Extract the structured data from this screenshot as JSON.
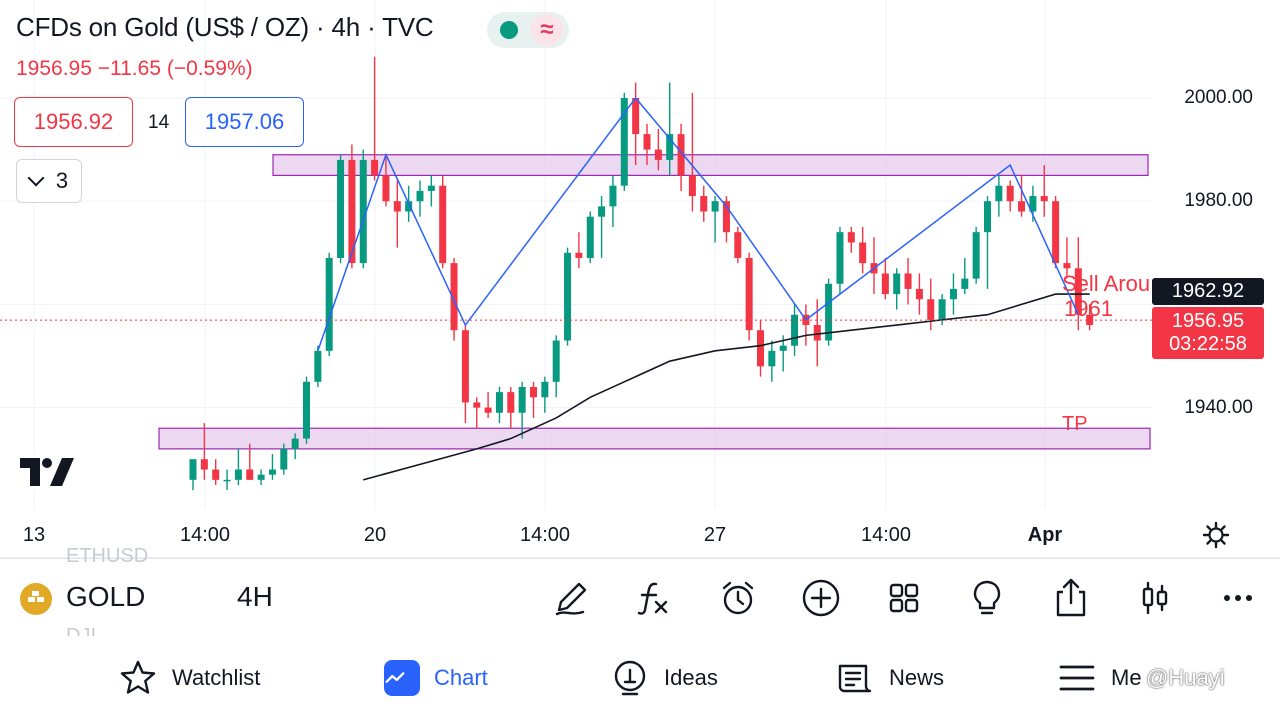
{
  "header": {
    "title": "CFDs on Gold (US$ / OZ) · 4h · TVC",
    "change": "1956.95  −11.65 (−0.59%)",
    "bid": "1956.92",
    "spread": "14",
    "ask": "1957.06",
    "indicator_count": "3",
    "status_color": "#089981",
    "wave_glyph": "≈"
  },
  "chart": {
    "y_ticks": [
      "2000.00",
      "1980.00",
      "1940.00"
    ],
    "x_ticks": [
      "13",
      "14:00",
      "20",
      "14:00",
      "27",
      "14:00",
      "Apr"
    ],
    "ma_price": "1962.92",
    "last_price": "1956.95",
    "countdown": "03:22:58",
    "annotation_sell": "Sell Arou",
    "annotation_sell_price": "1961",
    "annotation_tp": "TP",
    "colors": {
      "up": "#089981",
      "down": "#f23645",
      "zone": "#e1bee7",
      "zone_border": "#9c27b0",
      "zigzag": "#2962ff",
      "ma": "#131722"
    }
  },
  "chart_data": {
    "type": "candlestick",
    "y_range": [
      1926,
      2010
    ],
    "zones": [
      {
        "low": 1985,
        "high": 1989
      },
      {
        "low": 1932,
        "high": 1936
      }
    ],
    "candles": [
      {
        "o": 1926,
        "h": 1930,
        "l": 1924,
        "c": 1930
      },
      {
        "o": 1930,
        "h": 1937,
        "l": 1926,
        "c": 1928
      },
      {
        "o": 1928,
        "h": 1930,
        "l": 1925,
        "c": 1926
      },
      {
        "o": 1926,
        "h": 1928,
        "l": 1924,
        "c": 1926
      },
      {
        "o": 1926,
        "h": 1932,
        "l": 1925,
        "c": 1928
      },
      {
        "o": 1928,
        "h": 1933,
        "l": 1926,
        "c": 1926
      },
      {
        "o": 1926,
        "h": 1928,
        "l": 1925,
        "c": 1927
      },
      {
        "o": 1927,
        "h": 1931,
        "l": 1926,
        "c": 1928
      },
      {
        "o": 1928,
        "h": 1933,
        "l": 1927,
        "c": 1932
      },
      {
        "o": 1932,
        "h": 1935,
        "l": 1930,
        "c": 1934
      },
      {
        "o": 1934,
        "h": 1946,
        "l": 1933,
        "c": 1945
      },
      {
        "o": 1945,
        "h": 1952,
        "l": 1944,
        "c": 1951
      },
      {
        "o": 1951,
        "h": 1970,
        "l": 1950,
        "c": 1969
      },
      {
        "o": 1969,
        "h": 1989,
        "l": 1968,
        "c": 1988
      },
      {
        "o": 1988,
        "h": 1991,
        "l": 1967,
        "c": 1968
      },
      {
        "o": 1968,
        "h": 1990,
        "l": 1967,
        "c": 1988
      },
      {
        "o": 1988,
        "h": 2008,
        "l": 1984,
        "c": 1985
      },
      {
        "o": 1985,
        "h": 1989,
        "l": 1979,
        "c": 1980
      },
      {
        "o": 1980,
        "h": 1984,
        "l": 1971,
        "c": 1978
      },
      {
        "o": 1978,
        "h": 1983,
        "l": 1976,
        "c": 1980
      },
      {
        "o": 1980,
        "h": 1984,
        "l": 1977,
        "c": 1982
      },
      {
        "o": 1982,
        "h": 1985,
        "l": 1979,
        "c": 1983
      },
      {
        "o": 1983,
        "h": 1985,
        "l": 1967,
        "c": 1968
      },
      {
        "o": 1968,
        "h": 1969,
        "l": 1953,
        "c": 1955
      },
      {
        "o": 1955,
        "h": 1956,
        "l": 1937,
        "c": 1941
      },
      {
        "o": 1941,
        "h": 1942,
        "l": 1936,
        "c": 1940
      },
      {
        "o": 1940,
        "h": 1943,
        "l": 1938,
        "c": 1939
      },
      {
        "o": 1939,
        "h": 1944,
        "l": 1937,
        "c": 1943
      },
      {
        "o": 1943,
        "h": 1944,
        "l": 1936,
        "c": 1939
      },
      {
        "o": 1939,
        "h": 1945,
        "l": 1934,
        "c": 1944
      },
      {
        "o": 1944,
        "h": 1945,
        "l": 1938,
        "c": 1942
      },
      {
        "o": 1942,
        "h": 1946,
        "l": 1939,
        "c": 1945
      },
      {
        "o": 1945,
        "h": 1954,
        "l": 1942,
        "c": 1953
      },
      {
        "o": 1953,
        "h": 1971,
        "l": 1952,
        "c": 1970
      },
      {
        "o": 1970,
        "h": 1974,
        "l": 1967,
        "c": 1969
      },
      {
        "o": 1969,
        "h": 1978,
        "l": 1968,
        "c": 1977
      },
      {
        "o": 1977,
        "h": 1981,
        "l": 1969,
        "c": 1979
      },
      {
        "o": 1979,
        "h": 1985,
        "l": 1975,
        "c": 1983
      },
      {
        "o": 1983,
        "h": 2001,
        "l": 1982,
        "c": 2000
      },
      {
        "o": 2000,
        "h": 2003,
        "l": 1987,
        "c": 1993
      },
      {
        "o": 1993,
        "h": 1995,
        "l": 1987,
        "c": 1990
      },
      {
        "o": 1990,
        "h": 1994,
        "l": 1986,
        "c": 1988
      },
      {
        "o": 1988,
        "h": 2003,
        "l": 1985,
        "c": 1993
      },
      {
        "o": 1993,
        "h": 1995,
        "l": 1982,
        "c": 1985
      },
      {
        "o": 1985,
        "h": 2001,
        "l": 1978,
        "c": 1981
      },
      {
        "o": 1981,
        "h": 1983,
        "l": 1976,
        "c": 1978
      },
      {
        "o": 1978,
        "h": 1981,
        "l": 1972,
        "c": 1980
      },
      {
        "o": 1980,
        "h": 1981,
        "l": 1972,
        "c": 1974
      },
      {
        "o": 1974,
        "h": 1975,
        "l": 1968,
        "c": 1969
      },
      {
        "o": 1969,
        "h": 1970,
        "l": 1953,
        "c": 1955
      },
      {
        "o": 1955,
        "h": 1957,
        "l": 1946,
        "c": 1948
      },
      {
        "o": 1948,
        "h": 1953,
        "l": 1945,
        "c": 1951
      },
      {
        "o": 1951,
        "h": 1954,
        "l": 1947,
        "c": 1952
      },
      {
        "o": 1952,
        "h": 1960,
        "l": 1950,
        "c": 1958
      },
      {
        "o": 1958,
        "h": 1960,
        "l": 1952,
        "c": 1956
      },
      {
        "o": 1956,
        "h": 1961,
        "l": 1948,
        "c": 1953
      },
      {
        "o": 1953,
        "h": 1965,
        "l": 1952,
        "c": 1964
      },
      {
        "o": 1964,
        "h": 1975,
        "l": 1962,
        "c": 1974
      },
      {
        "o": 1974,
        "h": 1975,
        "l": 1970,
        "c": 1972
      },
      {
        "o": 1972,
        "h": 1975,
        "l": 1966,
        "c": 1968
      },
      {
        "o": 1968,
        "h": 1973,
        "l": 1962,
        "c": 1966
      },
      {
        "o": 1966,
        "h": 1969,
        "l": 1961,
        "c": 1962
      },
      {
        "o": 1962,
        "h": 1967,
        "l": 1959,
        "c": 1966
      },
      {
        "o": 1966,
        "h": 1969,
        "l": 1960,
        "c": 1963
      },
      {
        "o": 1963,
        "h": 1966,
        "l": 1958,
        "c": 1961
      },
      {
        "o": 1961,
        "h": 1965,
        "l": 1955,
        "c": 1957
      },
      {
        "o": 1957,
        "h": 1962,
        "l": 1956,
        "c": 1961
      },
      {
        "o": 1961,
        "h": 1966,
        "l": 1958,
        "c": 1963
      },
      {
        "o": 1963,
        "h": 1969,
        "l": 1962,
        "c": 1965
      },
      {
        "o": 1965,
        "h": 1975,
        "l": 1964,
        "c": 1974
      },
      {
        "o": 1974,
        "h": 1981,
        "l": 1963,
        "c": 1980
      },
      {
        "o": 1980,
        "h": 1985,
        "l": 1977,
        "c": 1983
      },
      {
        "o": 1983,
        "h": 1984,
        "l": 1978,
        "c": 1980
      },
      {
        "o": 1980,
        "h": 1985,
        "l": 1977,
        "c": 1978
      },
      {
        "o": 1978,
        "h": 1983,
        "l": 1976,
        "c": 1981
      },
      {
        "o": 1981,
        "h": 1987,
        "l": 1977,
        "c": 1980
      },
      {
        "o": 1980,
        "h": 1981,
        "l": 1967,
        "c": 1968
      },
      {
        "o": 1968,
        "h": 1973,
        "l": 1965,
        "c": 1967
      },
      {
        "o": 1967,
        "h": 1973,
        "l": 1955,
        "c": 1958
      },
      {
        "o": 1958,
        "h": 1960,
        "l": 1955,
        "c": 1956
      }
    ],
    "moving_average": [
      {
        "i": 15,
        "v": 1926
      },
      {
        "i": 20,
        "v": 1929
      },
      {
        "i": 25,
        "v": 1932
      },
      {
        "i": 28,
        "v": 1934
      },
      {
        "i": 32,
        "v": 1938
      },
      {
        "i": 35,
        "v": 1942
      },
      {
        "i": 38,
        "v": 1945
      },
      {
        "i": 42,
        "v": 1949
      },
      {
        "i": 46,
        "v": 1951
      },
      {
        "i": 50,
        "v": 1952
      },
      {
        "i": 54,
        "v": 1954
      },
      {
        "i": 58,
        "v": 1955
      },
      {
        "i": 62,
        "v": 1956
      },
      {
        "i": 66,
        "v": 1957
      },
      {
        "i": 70,
        "v": 1958
      },
      {
        "i": 73,
        "v": 1960
      },
      {
        "i": 76,
        "v": 1962
      },
      {
        "i": 79,
        "v": 1962
      }
    ],
    "zigzag": [
      {
        "i": 11,
        "v": 1951
      },
      {
        "i": 17,
        "v": 1989
      },
      {
        "i": 24,
        "v": 1956
      },
      {
        "i": 39,
        "v": 2000
      },
      {
        "i": 47,
        "v": 1979
      },
      {
        "i": 54,
        "v": 1957
      },
      {
        "i": 72,
        "v": 1987
      },
      {
        "i": 78,
        "v": 1958
      }
    ]
  },
  "symbol_bar": {
    "ghost_top": "ETHUSD",
    "ghost_bottom": "DJI",
    "name": "GOLD",
    "timeframe": "4H",
    "tools": [
      "pencil-icon",
      "function-icon",
      "alarm-icon",
      "plus-circle-icon",
      "grid-icon",
      "lightbulb-icon",
      "share-icon",
      "candles-icon",
      "more-icon"
    ]
  },
  "tabs": [
    {
      "label": "Watchlist",
      "icon": "star-icon"
    },
    {
      "label": "Chart",
      "icon": "chart-icon",
      "active": true
    },
    {
      "label": "Ideas",
      "icon": "idea-icon"
    },
    {
      "label": "News",
      "icon": "news-icon"
    },
    {
      "label": "Me",
      "icon": "menu-icon"
    }
  ],
  "watermark": "@Huayi"
}
